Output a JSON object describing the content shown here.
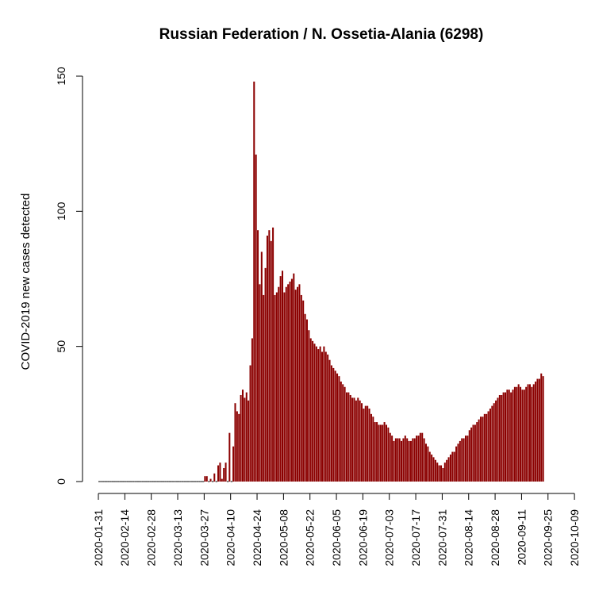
{
  "chart_data": {
    "type": "bar",
    "title": "Russian Federation / N. Ossetia-Alania (6298)",
    "xlabel": "",
    "ylabel": "COVID-2019 new cases detected",
    "ylim": [
      0,
      150
    ],
    "yticks": [
      0,
      50,
      100,
      150
    ],
    "bar_color": "#8b0000",
    "grid": false,
    "legend": "none",
    "x_start": "2020-01-31",
    "x_end": "2020-10-13",
    "xtick_labels": [
      "2020-01-31",
      "2020-02-14",
      "2020-02-28",
      "2020-03-13",
      "2020-03-27",
      "2020-04-10",
      "2020-04-24",
      "2020-05-08",
      "2020-05-22",
      "2020-06-05",
      "2020-06-19",
      "2020-07-03",
      "2020-07-17",
      "2020-07-31",
      "2020-08-14",
      "2020-08-28",
      "2020-09-11",
      "2020-09-25",
      "2020-10-09"
    ],
    "series": [
      {
        "values": [
          0,
          0,
          0,
          0,
          0,
          0,
          0,
          0,
          0,
          0,
          0,
          0,
          0,
          0,
          0,
          0,
          0,
          0,
          0,
          0,
          0,
          0,
          0,
          0,
          0,
          0,
          0,
          0,
          0,
          0,
          0,
          0,
          0,
          0,
          0,
          0,
          0,
          0,
          0,
          0,
          0,
          0,
          0,
          0,
          0,
          0,
          0,
          0,
          0,
          0,
          0,
          0,
          0,
          0,
          0,
          0,
          2,
          2,
          0,
          1,
          0,
          3,
          0,
          6,
          7,
          1,
          5,
          7,
          0,
          18,
          0,
          13,
          29,
          26,
          25,
          32,
          34,
          31,
          33,
          30,
          43,
          53,
          148,
          121,
          93,
          73,
          85,
          69,
          79,
          91,
          93,
          89,
          94,
          69,
          70,
          72,
          76,
          78,
          70,
          72,
          73,
          74,
          75,
          77,
          71,
          72,
          73,
          69,
          67,
          62,
          60,
          56,
          53,
          52,
          51,
          50,
          49,
          50,
          48,
          50,
          48,
          47,
          45,
          43,
          42,
          41,
          40,
          39,
          37,
          36,
          35,
          33,
          33,
          32,
          31,
          31,
          30,
          31,
          30,
          29,
          27,
          28,
          28,
          27,
          25,
          24,
          22,
          22,
          21,
          21,
          21,
          22,
          21,
          20,
          18,
          17,
          15,
          16,
          16,
          16,
          15,
          16,
          17,
          16,
          15,
          15,
          16,
          16,
          17,
          17,
          18,
          18,
          16,
          14,
          13,
          11,
          10,
          9,
          8,
          7,
          6,
          6,
          5,
          7,
          8,
          9,
          10,
          11,
          11,
          13,
          14,
          15,
          16,
          16,
          17,
          17,
          19,
          20,
          21,
          21,
          22,
          23,
          24,
          24,
          25,
          25,
          26,
          27,
          28,
          29,
          30,
          31,
          32,
          32,
          33,
          33,
          34,
          34,
          33,
          34,
          35,
          35,
          36,
          35,
          34,
          34,
          35,
          36,
          36,
          35,
          36,
          37,
          38,
          38,
          40,
          39
        ]
      }
    ]
  }
}
